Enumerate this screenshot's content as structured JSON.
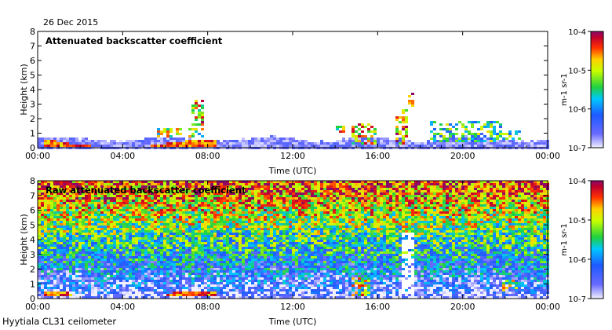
{
  "date_label": "26 Dec 2015",
  "footer_label": "Hyytiala CL31 ceilometer",
  "chart_data": [
    {
      "type": "heatmap",
      "title": "Attenuated backscatter coefficient",
      "xlabel": "Time (UTC)",
      "ylabel": "Height (km)",
      "x_ticks": [
        "00:00",
        "04:00",
        "08:00",
        "12:00",
        "16:00",
        "20:00",
        "00:00"
      ],
      "y_ticks": [
        "0",
        "1",
        "2",
        "3",
        "4",
        "5",
        "6",
        "7",
        "8"
      ],
      "xlim_hours": [
        0,
        24
      ],
      "ylim_km": [
        0,
        8
      ],
      "colorbar": {
        "unit_text": "m-1 sr-1",
        "ticks": [
          "10-7",
          "10-6",
          "10-5",
          "10-4"
        ],
        "log_range": [
          -7,
          -4
        ]
      },
      "features": [
        {
          "kind": "boundary_layer",
          "t0": 0,
          "t1": 24,
          "h_km": 0.6,
          "level": -6.7
        },
        {
          "kind": "surface_layer",
          "t0": 0.3,
          "t1": 8.4,
          "h_km": 0.35,
          "level": -4.5
        },
        {
          "kind": "cloud",
          "t0": 5.6,
          "t1": 7.8,
          "h0": 0.7,
          "h1": 1.4,
          "level": -5.2
        },
        {
          "kind": "cloud",
          "t0": 7.3,
          "t1": 7.9,
          "h0": 1.4,
          "h1": 3.3,
          "level": -4.8
        },
        {
          "kind": "cloud",
          "t0": 14.1,
          "t1": 14.4,
          "h0": 1.1,
          "h1": 1.5,
          "level": -5.0
        },
        {
          "kind": "cloud",
          "t0": 14.8,
          "t1": 16.0,
          "h0": 0.2,
          "h1": 1.7,
          "level": -4.9
        },
        {
          "kind": "cloud",
          "t0": 16.8,
          "t1": 17.5,
          "h0": 0.2,
          "h1": 2.6,
          "level": -4.6
        },
        {
          "kind": "cloud",
          "t0": 17.5,
          "t1": 17.7,
          "h0": 2.5,
          "h1": 3.8,
          "level": -4.4
        },
        {
          "kind": "cloud",
          "t0": 18.5,
          "t1": 21.8,
          "h0": 0.3,
          "h1": 1.9,
          "level": -5.6
        },
        {
          "kind": "cloud",
          "t0": 21.8,
          "t1": 22.8,
          "h0": 0.5,
          "h1": 1.2,
          "level": -5.4
        }
      ]
    },
    {
      "type": "heatmap",
      "title": "Raw attenuated backscatter coefficient",
      "xlabel": "Time (UTC)",
      "ylabel": "Height (km)",
      "x_ticks": [
        "00:00",
        "04:00",
        "08:00",
        "12:00",
        "16:00",
        "20:00",
        "00:00"
      ],
      "y_ticks": [
        "0",
        "1",
        "2",
        "3",
        "4",
        "5",
        "6",
        "7",
        "8"
      ],
      "xlim_hours": [
        0,
        24
      ],
      "ylim_km": [
        0,
        8
      ],
      "colorbar": {
        "unit_text": "m-1 sr-1",
        "ticks": [
          "10-7",
          "10-6",
          "10-5",
          "10-4"
        ],
        "log_range": [
          -7,
          -4
        ]
      },
      "features": [
        {
          "kind": "noise_gradient",
          "level_bottom": -6.8,
          "level_top": -4.4
        },
        {
          "kind": "surface_layer",
          "t0": 0.3,
          "t1": 8.4,
          "h_km": 0.35,
          "level": -4.5
        },
        {
          "kind": "clear_gap",
          "t0": 17.2,
          "t1": 17.7,
          "h0": 0.3,
          "h1": 4.5
        },
        {
          "kind": "cloud",
          "t0": 14.8,
          "t1": 15.6,
          "h0": 0.2,
          "h1": 1.5,
          "level": -5.0
        },
        {
          "kind": "cloud",
          "t0": 21.8,
          "t1": 22.6,
          "h0": 0.5,
          "h1": 1.2,
          "level": -5.2
        }
      ]
    }
  ]
}
